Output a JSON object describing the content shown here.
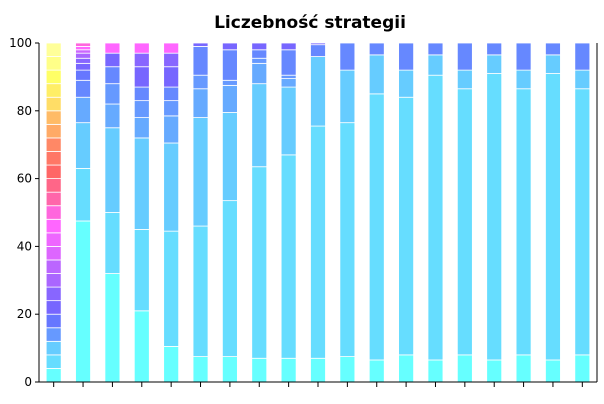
{
  "chart_data": {
    "type": "bar",
    "stacked": true,
    "title": "Liczebność strategii",
    "xlabel": "",
    "ylabel": "",
    "ylim": [
      0,
      100
    ],
    "y_ticks": [
      0,
      20,
      40,
      60,
      80,
      100
    ],
    "legend": "none",
    "grid": false,
    "segment_edge_color": "#ffffff",
    "bars": [
      {
        "segments": [
          {
            "value": 4,
            "color": "#66ffff"
          },
          {
            "value": 4,
            "color": "#66ddff"
          },
          {
            "value": 4,
            "color": "#66ccff"
          },
          {
            "value": 4,
            "color": "#6699ff"
          },
          {
            "value": 4,
            "color": "#6677ff"
          },
          {
            "value": 4,
            "color": "#7766ff"
          },
          {
            "value": 4,
            "color": "#8866ff"
          },
          {
            "value": 4,
            "color": "#aa66ff"
          },
          {
            "value": 4,
            "color": "#bb66ff"
          },
          {
            "value": 4,
            "color": "#dd66ff"
          },
          {
            "value": 4,
            "color": "#ee66ff"
          },
          {
            "value": 4,
            "color": "#ff66ff"
          },
          {
            "value": 4,
            "color": "#ff66dd"
          },
          {
            "value": 4,
            "color": "#ff66aa"
          },
          {
            "value": 4,
            "color": "#ff6688"
          },
          {
            "value": 4,
            "color": "#ff6666"
          },
          {
            "value": 4,
            "color": "#ff7766"
          },
          {
            "value": 4,
            "color": "#ff8866"
          },
          {
            "value": 4,
            "color": "#ffaa66"
          },
          {
            "value": 4,
            "color": "#ffbb66"
          },
          {
            "value": 4,
            "color": "#ffdd66"
          },
          {
            "value": 4,
            "color": "#ffee66"
          },
          {
            "value": 4,
            "color": "#ffff66"
          },
          {
            "value": 4,
            "color": "#ffff88"
          },
          {
            "value": 4,
            "color": "#ffff99"
          }
        ]
      },
      {
        "segments": [
          {
            "value": 47.5,
            "color": "#66ffff"
          },
          {
            "value": 15.5,
            "color": "#66ddff"
          },
          {
            "value": 13.5,
            "color": "#66ccff"
          },
          {
            "value": 7.5,
            "color": "#66aaff"
          },
          {
            "value": 5,
            "color": "#6688ff"
          },
          {
            "value": 3,
            "color": "#6677ff"
          },
          {
            "value": 2,
            "color": "#7766ff"
          },
          {
            "value": 1.5,
            "color": "#8866ff"
          },
          {
            "value": 1.5,
            "color": "#aa66ff"
          },
          {
            "value": 1,
            "color": "#cc66ff"
          },
          {
            "value": 1,
            "color": "#ff66ff"
          },
          {
            "value": 1,
            "color": "#ff66dd"
          }
        ]
      },
      {
        "segments": [
          {
            "value": 32,
            "color": "#66ffff"
          },
          {
            "value": 18,
            "color": "#66ddff"
          },
          {
            "value": 25,
            "color": "#66ccff"
          },
          {
            "value": 7,
            "color": "#66aaff"
          },
          {
            "value": 6,
            "color": "#6699ff"
          },
          {
            "value": 5,
            "color": "#6688ff"
          },
          {
            "value": 4,
            "color": "#7766ff"
          },
          {
            "value": 3,
            "color": "#ff66ff"
          }
        ]
      },
      {
        "segments": [
          {
            "value": 21,
            "color": "#66ffff"
          },
          {
            "value": 24,
            "color": "#66ddff"
          },
          {
            "value": 27,
            "color": "#66ccff"
          },
          {
            "value": 6,
            "color": "#66aaff"
          },
          {
            "value": 5,
            "color": "#6699ff"
          },
          {
            "value": 4,
            "color": "#6688ff"
          },
          {
            "value": 6,
            "color": "#7766ff"
          },
          {
            "value": 4,
            "color": "#8866ff"
          },
          {
            "value": 3,
            "color": "#ff66ff"
          }
        ]
      },
      {
        "segments": [
          {
            "value": 10.5,
            "color": "#66ffff"
          },
          {
            "value": 34,
            "color": "#66ddff"
          },
          {
            "value": 26,
            "color": "#66ccff"
          },
          {
            "value": 8,
            "color": "#66aaff"
          },
          {
            "value": 4.5,
            "color": "#6699ff"
          },
          {
            "value": 4,
            "color": "#6688ff"
          },
          {
            "value": 6,
            "color": "#7766ff"
          },
          {
            "value": 4,
            "color": "#8866ff"
          },
          {
            "value": 3,
            "color": "#ff66ff"
          }
        ]
      },
      {
        "segments": [
          {
            "value": 7.5,
            "color": "#66ffff"
          },
          {
            "value": 38.5,
            "color": "#66ddff"
          },
          {
            "value": 32,
            "color": "#66ccff"
          },
          {
            "value": 8.5,
            "color": "#66aaff"
          },
          {
            "value": 4,
            "color": "#6699ff"
          },
          {
            "value": 8.5,
            "color": "#6688ff"
          },
          {
            "value": 1,
            "color": "#7766ff"
          }
        ]
      },
      {
        "segments": [
          {
            "value": 7.5,
            "color": "#66ffff"
          },
          {
            "value": 46,
            "color": "#66ddff"
          },
          {
            "value": 26,
            "color": "#66ccff"
          },
          {
            "value": 8,
            "color": "#66aaff"
          },
          {
            "value": 1.5,
            "color": "#6699ff"
          },
          {
            "value": 9,
            "color": "#6688ff"
          },
          {
            "value": 2,
            "color": "#7766ff"
          }
        ]
      },
      {
        "segments": [
          {
            "value": 7,
            "color": "#66ffff"
          },
          {
            "value": 56.5,
            "color": "#66ddff"
          },
          {
            "value": 24.5,
            "color": "#66ccff"
          },
          {
            "value": 6,
            "color": "#66aaff"
          },
          {
            "value": 1.5,
            "color": "#6699ff"
          },
          {
            "value": 2.5,
            "color": "#6688ff"
          },
          {
            "value": 2,
            "color": "#7766ff"
          }
        ]
      },
      {
        "segments": [
          {
            "value": 7,
            "color": "#66ffff"
          },
          {
            "value": 60,
            "color": "#66ddff"
          },
          {
            "value": 20,
            "color": "#66ccff"
          },
          {
            "value": 2.5,
            "color": "#66aaff"
          },
          {
            "value": 1,
            "color": "#6699ff"
          },
          {
            "value": 7.5,
            "color": "#6688ff"
          },
          {
            "value": 2,
            "color": "#7766ff"
          }
        ]
      },
      {
        "segments": [
          {
            "value": 7,
            "color": "#66ffff"
          },
          {
            "value": 68.5,
            "color": "#66ddff"
          },
          {
            "value": 20.5,
            "color": "#66ccff"
          },
          {
            "value": 3.5,
            "color": "#6688ff"
          },
          {
            "value": 0.5,
            "color": "#7766ff"
          }
        ]
      },
      {
        "segments": [
          {
            "value": 7.5,
            "color": "#66ffff"
          },
          {
            "value": 69,
            "color": "#66ddff"
          },
          {
            "value": 15.5,
            "color": "#66ccff"
          },
          {
            "value": 8,
            "color": "#6688ff"
          }
        ]
      },
      {
        "segments": [
          {
            "value": 6.5,
            "color": "#66ffff"
          },
          {
            "value": 78.5,
            "color": "#66ddff"
          },
          {
            "value": 11.5,
            "color": "#66ccff"
          },
          {
            "value": 3.5,
            "color": "#6688ff"
          }
        ]
      },
      {
        "segments": [
          {
            "value": 8,
            "color": "#66ffff"
          },
          {
            "value": 76,
            "color": "#66ddff"
          },
          {
            "value": 8,
            "color": "#66ccff"
          },
          {
            "value": 8,
            "color": "#6688ff"
          }
        ]
      },
      {
        "segments": [
          {
            "value": 6.5,
            "color": "#66ffff"
          },
          {
            "value": 84,
            "color": "#66ddff"
          },
          {
            "value": 6,
            "color": "#66ccff"
          },
          {
            "value": 3.5,
            "color": "#6688ff"
          }
        ]
      },
      {
        "segments": [
          {
            "value": 8,
            "color": "#66ffff"
          },
          {
            "value": 78.5,
            "color": "#66ddff"
          },
          {
            "value": 5.5,
            "color": "#66ccff"
          },
          {
            "value": 8,
            "color": "#6688ff"
          }
        ]
      },
      {
        "segments": [
          {
            "value": 6.5,
            "color": "#66ffff"
          },
          {
            "value": 84.5,
            "color": "#66ddff"
          },
          {
            "value": 5.5,
            "color": "#66ccff"
          },
          {
            "value": 3.5,
            "color": "#6688ff"
          }
        ]
      },
      {
        "segments": [
          {
            "value": 8,
            "color": "#66ffff"
          },
          {
            "value": 78.5,
            "color": "#66ddff"
          },
          {
            "value": 5.5,
            "color": "#66ccff"
          },
          {
            "value": 8,
            "color": "#6688ff"
          }
        ]
      },
      {
        "segments": [
          {
            "value": 6.5,
            "color": "#66ffff"
          },
          {
            "value": 84.5,
            "color": "#66ddff"
          },
          {
            "value": 5.5,
            "color": "#66ccff"
          },
          {
            "value": 3.5,
            "color": "#6688ff"
          }
        ]
      },
      {
        "segments": [
          {
            "value": 8,
            "color": "#66ffff"
          },
          {
            "value": 78.5,
            "color": "#66ddff"
          },
          {
            "value": 5.5,
            "color": "#66ccff"
          },
          {
            "value": 8,
            "color": "#6688ff"
          }
        ]
      }
    ]
  }
}
